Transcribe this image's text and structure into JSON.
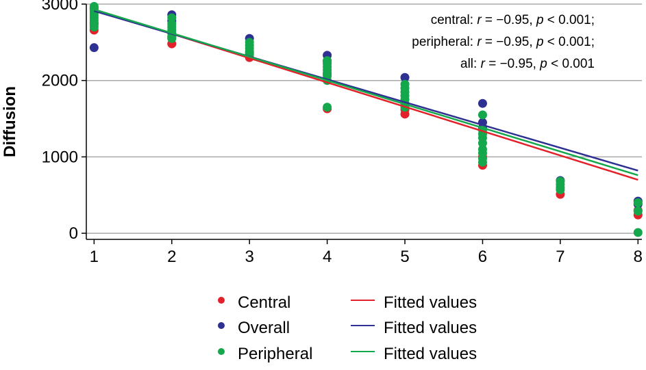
{
  "chart_data": {
    "type": "scatter",
    "xlabel": "",
    "ylabel": "Diffusion",
    "xlim": [
      0.9,
      8.05
    ],
    "ylim": [
      -80,
      3000
    ],
    "x_ticks": [
      1,
      2,
      3,
      4,
      5,
      6,
      7,
      8
    ],
    "y_ticks": [
      0,
      1000,
      2000,
      3000
    ],
    "grid": "horizontal",
    "legend_position": "bottom",
    "annotation": [
      {
        "prefix": "central: ",
        "r": "r",
        "r_value": " = −0.95, ",
        "p": "p",
        "p_value": " < 0.001;"
      },
      {
        "prefix": "peripheral: ",
        "r": "r",
        "r_value": " = −0.95, ",
        "p": "p",
        "p_value": " < 0.001;"
      },
      {
        "prefix": "all: ",
        "r": "r",
        "r_value": " = −0.95, ",
        "p": "p",
        "p_value": " < 0.001"
      }
    ],
    "scatter_series": [
      {
        "name": "Central",
        "color": "#e3212b",
        "points": [
          [
            1,
            2660
          ],
          [
            1,
            2750
          ],
          [
            2,
            2480
          ],
          [
            2,
            2560
          ],
          [
            3,
            2300
          ],
          [
            3,
            2360
          ],
          [
            4,
            1630
          ],
          [
            4,
            2080
          ],
          [
            5,
            1560
          ],
          [
            5,
            1620
          ],
          [
            6,
            890
          ],
          [
            6,
            1000
          ],
          [
            7,
            510
          ],
          [
            8,
            240
          ],
          [
            8,
            300
          ]
        ]
      },
      {
        "name": "Overall",
        "color": "#2e3192",
        "points": [
          [
            1,
            2430
          ],
          [
            1,
            2950
          ],
          [
            2,
            2860
          ],
          [
            2,
            2780
          ],
          [
            3,
            2550
          ],
          [
            4,
            2330
          ],
          [
            4,
            2250
          ],
          [
            5,
            2040
          ],
          [
            6,
            1700
          ],
          [
            6,
            1450
          ],
          [
            6,
            1380
          ],
          [
            7,
            690
          ],
          [
            8,
            420
          ],
          [
            8,
            380
          ]
        ]
      },
      {
        "name": "Peripheral",
        "color": "#15a74b",
        "points": [
          [
            1,
            2700
          ],
          [
            1,
            2730
          ],
          [
            1,
            2760
          ],
          [
            1,
            2790
          ],
          [
            1,
            2820
          ],
          [
            1,
            2850
          ],
          [
            1,
            2880
          ],
          [
            1,
            2910
          ],
          [
            1,
            2940
          ],
          [
            1,
            2970
          ],
          [
            2,
            2550
          ],
          [
            2,
            2580
          ],
          [
            2,
            2620
          ],
          [
            2,
            2660
          ],
          [
            2,
            2700
          ],
          [
            2,
            2740
          ],
          [
            2,
            2820
          ],
          [
            3,
            2340
          ],
          [
            3,
            2380
          ],
          [
            3,
            2420
          ],
          [
            3,
            2460
          ],
          [
            3,
            2500
          ],
          [
            4,
            1650
          ],
          [
            4,
            2000
          ],
          [
            4,
            2060
          ],
          [
            4,
            2100
          ],
          [
            4,
            2140
          ],
          [
            4,
            2180
          ],
          [
            4,
            2220
          ],
          [
            4,
            2260
          ],
          [
            5,
            1650
          ],
          [
            5,
            1700
          ],
          [
            5,
            1750
          ],
          [
            5,
            1800
          ],
          [
            5,
            1850
          ],
          [
            5,
            1900
          ],
          [
            5,
            1950
          ],
          [
            6,
            930
          ],
          [
            6,
            980
          ],
          [
            6,
            1050
          ],
          [
            6,
            1100
          ],
          [
            6,
            1180
          ],
          [
            6,
            1250
          ],
          [
            6,
            1300
          ],
          [
            6,
            1350
          ],
          [
            6,
            1550
          ],
          [
            7,
            570
          ],
          [
            7,
            600
          ],
          [
            7,
            640
          ],
          [
            7,
            680
          ],
          [
            8,
            10
          ],
          [
            8,
            290
          ],
          [
            8,
            400
          ]
        ]
      }
    ],
    "fitted_lines": [
      {
        "name": "Fitted values",
        "color": "#e3212b",
        "x": [
          1,
          8
        ],
        "y": [
          2930,
          700
        ]
      },
      {
        "name": "Fitted values",
        "color": "#2e3192",
        "x": [
          1,
          8
        ],
        "y": [
          2910,
          820
        ]
      },
      {
        "name": "Fitted values",
        "color": "#15a74b",
        "x": [
          1,
          8
        ],
        "y": [
          2930,
          760
        ]
      }
    ]
  }
}
